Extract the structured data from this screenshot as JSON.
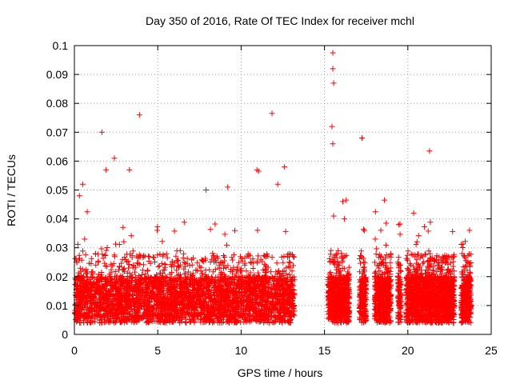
{
  "chart_data": {
    "type": "scatter",
    "title": "Day 350 of 2016, Rate Of TEC Index for receiver mchl",
    "xlabel": "GPS time / hours",
    "ylabel": "ROTI / TECUs",
    "xlim": [
      0,
      25
    ],
    "ylim": [
      0,
      0.1
    ],
    "xticks": [
      "0",
      "5",
      "10",
      "15",
      "20",
      "25"
    ],
    "yticks": [
      "0",
      "0.01",
      "0.02",
      "0.03",
      "0.04",
      "0.05",
      "0.06",
      "0.07",
      "0.08",
      "0.09",
      "0.1"
    ],
    "grid": true,
    "marker": "+",
    "color": "#ff0000",
    "data_intervals_hours": [
      [
        0.0,
        13.2
      ],
      [
        15.2,
        16.5
      ],
      [
        17.1,
        17.5
      ],
      [
        18.0,
        19.0
      ],
      [
        19.4,
        19.6
      ],
      [
        19.9,
        22.8
      ],
      [
        23.2,
        23.8
      ]
    ],
    "outlier_points": [
      {
        "x": 15.5,
        "y": 0.0975
      },
      {
        "x": 15.5,
        "y": 0.092
      },
      {
        "x": 15.55,
        "y": 0.087
      },
      {
        "x": 15.45,
        "y": 0.072
      },
      {
        "x": 15.5,
        "y": 0.066
      },
      {
        "x": 17.25,
        "y": 0.068
      },
      {
        "x": 11.85,
        "y": 0.0765
      },
      {
        "x": 3.9,
        "y": 0.076
      },
      {
        "x": 1.65,
        "y": 0.07
      },
      {
        "x": 21.3,
        "y": 0.0635
      },
      {
        "x": 2.4,
        "y": 0.061
      },
      {
        "x": 12.6,
        "y": 0.058
      },
      {
        "x": 10.95,
        "y": 0.057
      },
      {
        "x": 11.05,
        "y": 0.0565
      },
      {
        "x": 1.9,
        "y": 0.057
      },
      {
        "x": 3.3,
        "y": 0.057
      },
      {
        "x": 0.5,
        "y": 0.052
      },
      {
        "x": 18.6,
        "y": 0.0465
      },
      {
        "x": 16.3,
        "y": 0.0465
      },
      {
        "x": 16.1,
        "y": 0.046
      },
      {
        "x": 15.55,
        "y": 0.041
      },
      {
        "x": 16.2,
        "y": 0.04
      },
      {
        "x": 20.35,
        "y": 0.042
      },
      {
        "x": 19.45,
        "y": 0.038
      },
      {
        "x": 18.7,
        "y": 0.0385
      },
      {
        "x": 0.3,
        "y": 0.048
      },
      {
        "x": 7.9,
        "y": 0.05
      },
      {
        "x": 9.2,
        "y": 0.051
      },
      {
        "x": 12.2,
        "y": 0.052
      }
    ]
  }
}
